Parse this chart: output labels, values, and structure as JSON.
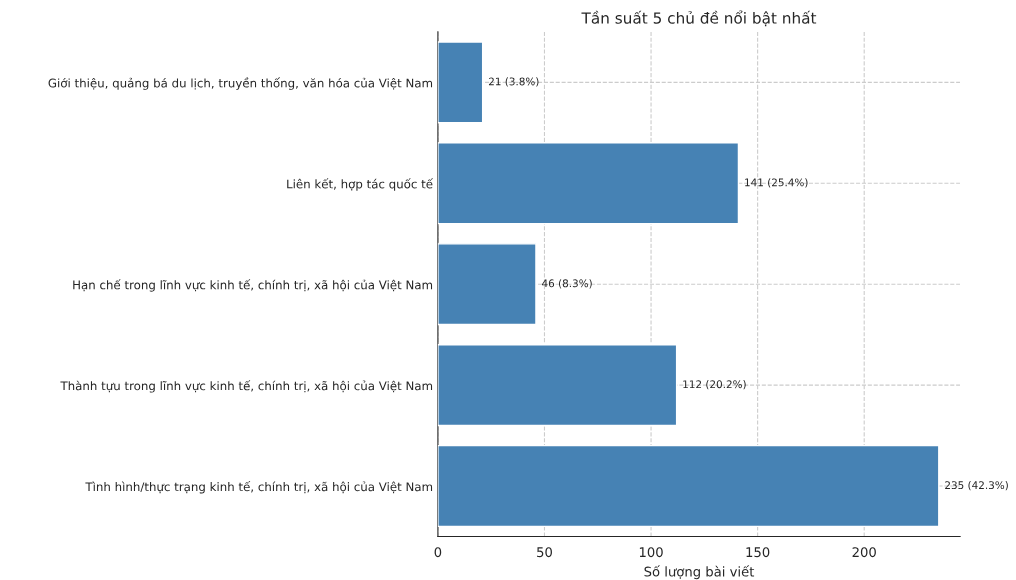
{
  "chart_data": {
    "type": "bar",
    "orientation": "horizontal",
    "title": "Tần suất 5 chủ đề nổi bật nhất",
    "xlabel": "Số lượng bài viết",
    "categories": [
      "Giới thiệu, quảng bá du lịch, truyền thống, văn hóa của Việt Nam",
      "Liên kết, hợp tác quốc tế",
      "Hạn chế trong lĩnh vực kinh tế, chính trị, xã hội của Việt Nam",
      "Thành tựu trong lĩnh vực kinh tế, chính trị, xã hội của Việt Nam",
      "Tình hình/thực trạng kinh tế, chính trị, xã hội của Việt Nam"
    ],
    "values": [
      21,
      141,
      46,
      112,
      235
    ],
    "value_labels": [
      "21 (3.8%)",
      "141 (25.4%)",
      "46 (8.3%)",
      "112 (20.2%)",
      "235 (42.3%)"
    ],
    "color": "#4682b4",
    "xlim": [
      0,
      245
    ],
    "xticks": [
      0,
      50,
      100,
      150,
      200
    ],
    "grid": true
  }
}
